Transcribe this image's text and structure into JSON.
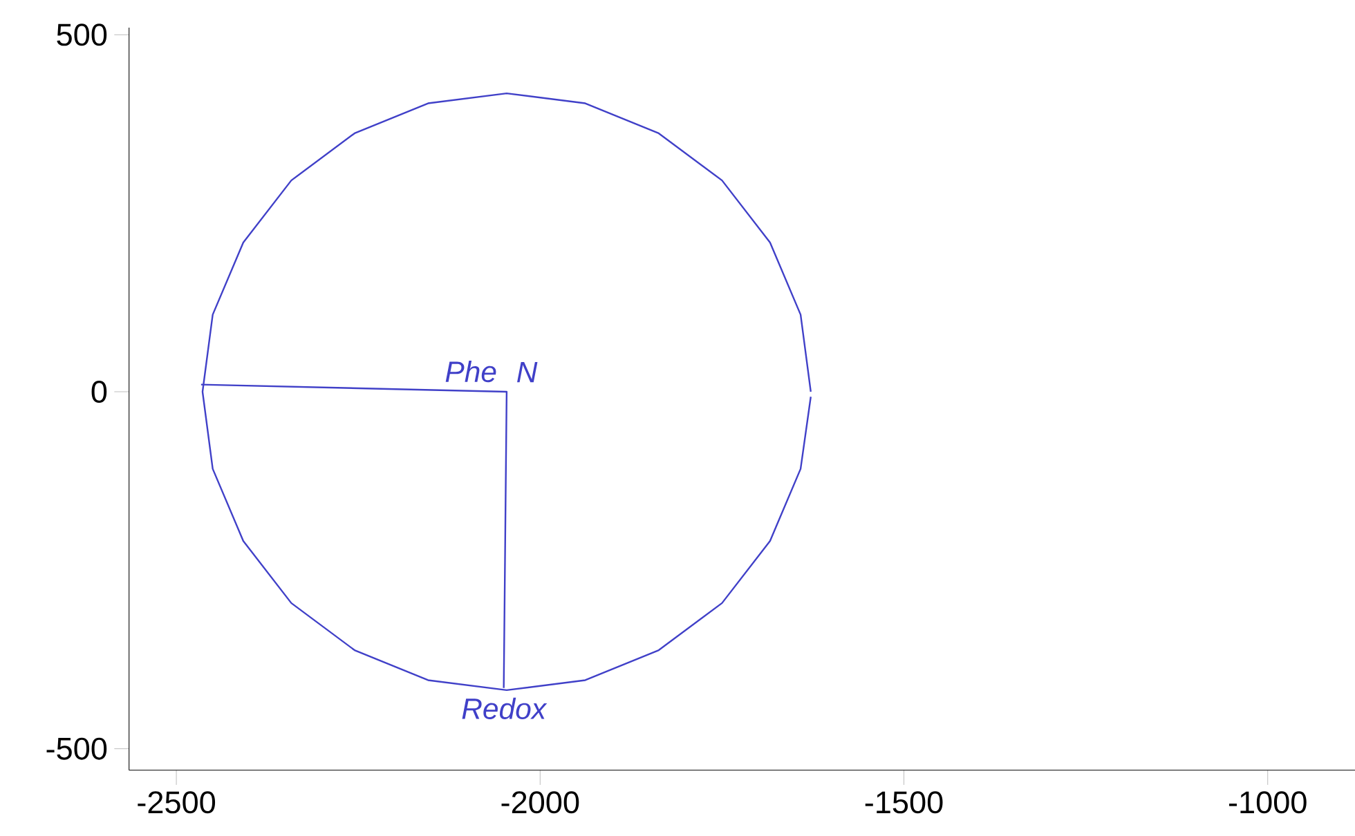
{
  "chart_data": {
    "type": "line",
    "xlim": [
      -2565,
      -880
    ],
    "ylim": [
      -530,
      510
    ],
    "xticks": [
      -2500,
      -2000,
      -1500,
      -1000
    ],
    "yticks": [
      -500,
      0,
      500
    ],
    "grid": false,
    "marker": "none",
    "line_style": "solid",
    "series": [
      {
        "color": "#4040c8",
        "x": [
          -1628,
          -1642,
          -1684,
          -1750,
          -1837,
          -1938,
          -2046,
          -2154,
          -2255,
          -2342,
          -2408,
          -2450,
          -2464,
          -2450,
          -2408,
          -2342,
          -2255,
          -2154,
          -2046,
          -1938,
          -1837,
          -1750,
          -1684,
          -1642,
          -1628
        ],
        "values": [
          0,
          108,
          209,
          296,
          362,
          404,
          418,
          404,
          362,
          296,
          209,
          108,
          0,
          -108,
          -209,
          -296,
          -362,
          -404,
          -418,
          -404,
          -362,
          -296,
          -209,
          -108,
          -7
        ]
      },
      {
        "color": "#4040c8",
        "x": [
          -2466,
          -2046,
          -2050
        ],
        "values": [
          10,
          0,
          -415
        ]
      }
    ],
    "annotations": [
      "Phe",
      "N",
      "Redox"
    ]
  }
}
